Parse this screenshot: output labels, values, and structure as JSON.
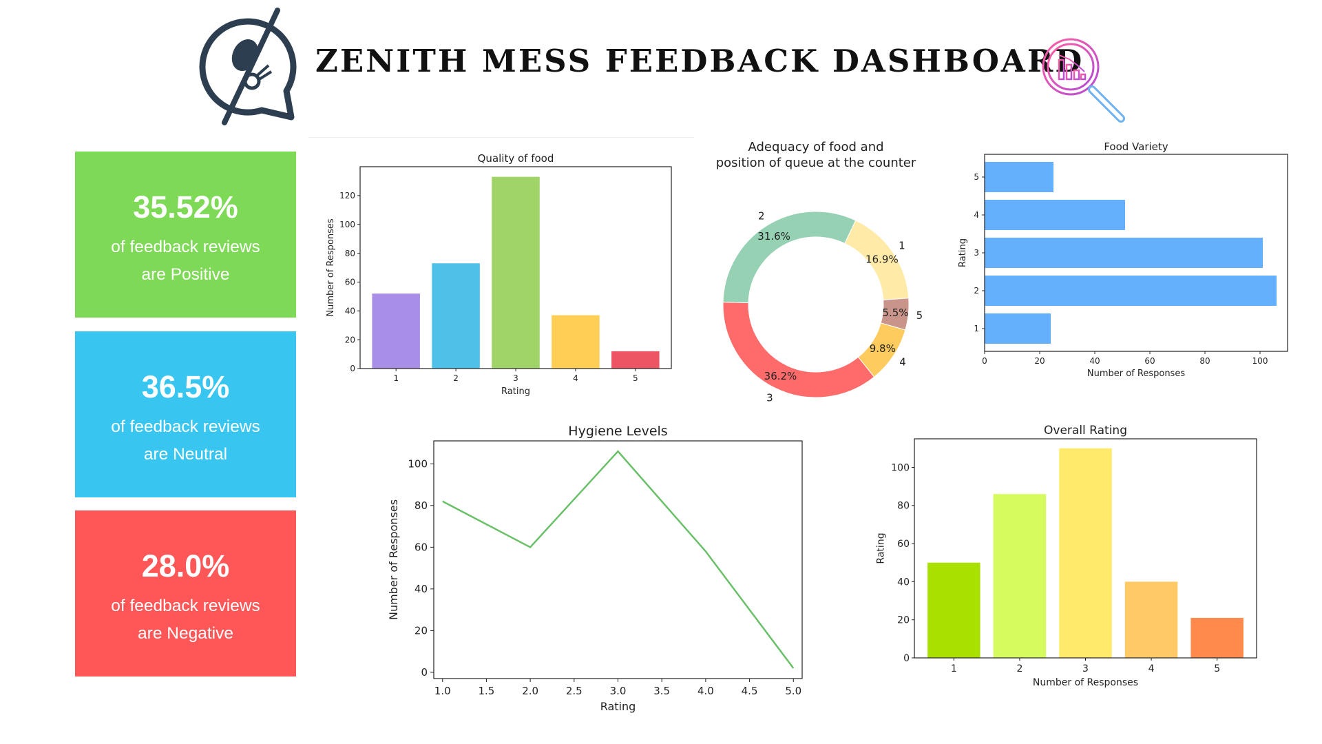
{
  "header": {
    "title": "ZENITH MESS FEEDBACK DASHBOARD",
    "logo_icon": "spoon-fork-chat-icon",
    "magnifier_icon": "chart-magnifier-icon"
  },
  "cards": [
    {
      "value": "35.52%",
      "line1": "of feedback reviews",
      "line2": "are Positive",
      "color": "#7ed957"
    },
    {
      "value": "36.5%",
      "line1": "of feedback reviews",
      "line2": "are Neutral",
      "color": "#38c6f0"
    },
    {
      "value": "28.0%",
      "line1": "of feedback reviews",
      "line2": "are Negative",
      "color": "#ff5757"
    }
  ],
  "chart_data": [
    {
      "id": "quality",
      "type": "bar",
      "title": "Quality of food",
      "xlabel": "Rating",
      "ylabel": "Number of Responses",
      "categories": [
        "1",
        "2",
        "3",
        "4",
        "5"
      ],
      "values": [
        52,
        73,
        133,
        37,
        12
      ],
      "colors": [
        "#a98ee8",
        "#4fc1e8",
        "#a0d468",
        "#ffce54",
        "#ed5565"
      ],
      "ylim": [
        0,
        140
      ],
      "yticks": [
        0,
        20,
        40,
        60,
        80,
        100,
        120
      ]
    },
    {
      "id": "adequacy",
      "type": "pie",
      "title_lines": [
        "Adequacy of food and",
        "position of queue at the counter"
      ],
      "labels": [
        "1",
        "5",
        "4",
        "3",
        "2"
      ],
      "values": [
        16.9,
        5.5,
        9.8,
        36.2,
        31.6
      ],
      "pct_labels": [
        "16.9%",
        "5.5%",
        "9.8%",
        "36.2%",
        "31.6%"
      ],
      "colors": [
        "#ffeaa7",
        "#c9958a",
        "#fdcb5e",
        "#ff6b6b",
        "#96d1b4"
      ]
    },
    {
      "id": "variety",
      "type": "bar",
      "orientation": "horizontal",
      "title": "Food Variety",
      "xlabel": "Number of Responses",
      "ylabel": "Rating",
      "categories": [
        "1",
        "2",
        "3",
        "4",
        "5"
      ],
      "values": [
        24,
        106,
        101,
        51,
        25
      ],
      "color": "#64b0fc",
      "xlim": [
        0,
        110
      ],
      "xticks": [
        0,
        20,
        40,
        60,
        80,
        100
      ]
    },
    {
      "id": "hygiene",
      "type": "line",
      "title": "Hygiene Levels",
      "xlabel": "Rating",
      "ylabel": "Number of Responses",
      "x": [
        1,
        2,
        3,
        4,
        5
      ],
      "y": [
        82,
        60,
        106,
        58,
        2
      ],
      "color": "#6abf69",
      "xlim": [
        0.9,
        5.1
      ],
      "ylim": [
        -3,
        111
      ],
      "xticks": [
        "1.0",
        "1.5",
        "2.0",
        "2.5",
        "3.0",
        "3.5",
        "4.0",
        "4.5",
        "5.0"
      ],
      "yticks": [
        0,
        20,
        40,
        60,
        80,
        100
      ]
    },
    {
      "id": "overall",
      "type": "bar",
      "title": "Overall Rating",
      "xlabel": "Number of Responses",
      "ylabel": "Rating",
      "categories": [
        "1",
        "2",
        "3",
        "4",
        "5"
      ],
      "values": [
        50,
        86,
        110,
        40,
        21
      ],
      "colors": [
        "#a9e000",
        "#d6fb5e",
        "#ffeb69",
        "#ffc966",
        "#ff8a4c"
      ],
      "ylim": [
        0,
        115
      ],
      "yticks": [
        0,
        20,
        40,
        60,
        80,
        100
      ]
    }
  ]
}
